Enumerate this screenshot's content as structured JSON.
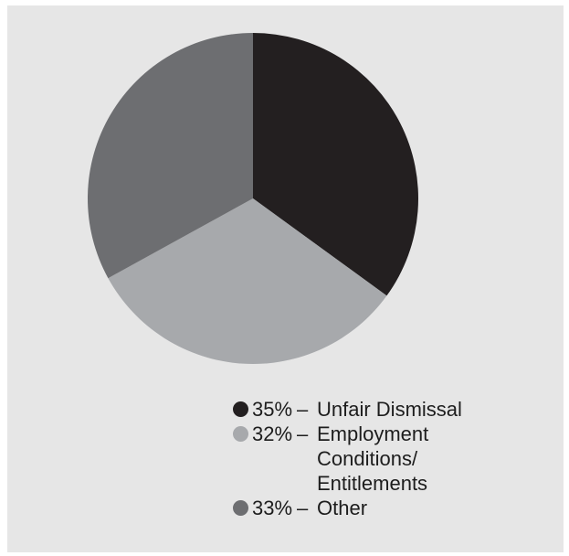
{
  "chart_data": {
    "type": "pie",
    "slices": [
      {
        "label_lines": [
          "Unfair Dismissal"
        ],
        "value": 35,
        "value_label": "35%",
        "color": "#231f20"
      },
      {
        "label_lines": [
          "Employment",
          "Conditions/",
          "Entitlements"
        ],
        "value": 32,
        "value_label": "32%",
        "color": "#a7a9ac"
      },
      {
        "label_lines": [
          "Other"
        ],
        "value": 33,
        "value_label": "33%",
        "color": "#6d6e71"
      }
    ],
    "dash": "–",
    "background_color": "#e6e6e6",
    "legend_position": "bottom-right"
  }
}
